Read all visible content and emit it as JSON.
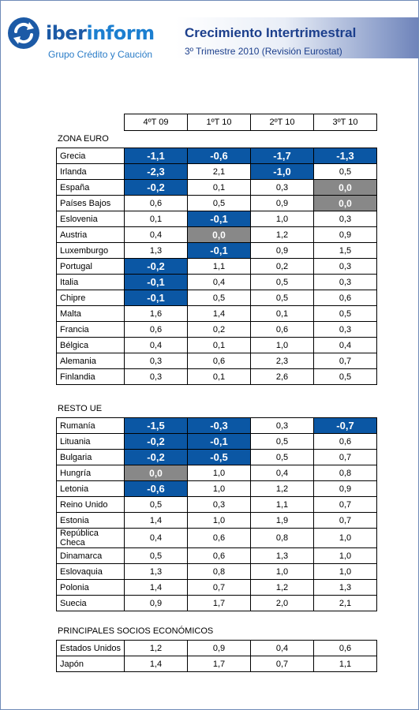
{
  "brand": {
    "name_bold": "iber",
    "name_light": "inform",
    "tagline": "Grupo Crédito y Caución"
  },
  "header": {
    "title": "Crecimiento Intertrimestral",
    "subtitle": "3º Trimestre 2010 (Revisión Eurostat)"
  },
  "columns": [
    "4ºT 09",
    "1ºT 10",
    "2ºT 10",
    "3ºT 10"
  ],
  "sections": [
    {
      "label": "ZONA EURO",
      "rows": [
        {
          "name": "Grecia",
          "values": [
            "-1,1",
            "-0,6",
            "-1,7",
            "-1,3"
          ]
        },
        {
          "name": "Irlanda",
          "values": [
            "-2,3",
            "2,1",
            "-1,0",
            "0,5"
          ]
        },
        {
          "name": "España",
          "values": [
            "-0,2",
            "0,1",
            "0,3",
            "0,0"
          ]
        },
        {
          "name": "Países Bajos",
          "values": [
            "0,6",
            "0,5",
            "0,9",
            "0,0"
          ]
        },
        {
          "name": "Eslovenia",
          "values": [
            "0,1",
            "-0,1",
            "1,0",
            "0,3"
          ]
        },
        {
          "name": "Austria",
          "values": [
            "0,4",
            "0,0",
            "1,2",
            "0,9"
          ]
        },
        {
          "name": "Luxemburgo",
          "values": [
            "1,3",
            "-0,1",
            "0,9",
            "1,5"
          ]
        },
        {
          "name": "Portugal",
          "values": [
            "-0,2",
            "1,1",
            "0,2",
            "0,3"
          ]
        },
        {
          "name": "Italia",
          "values": [
            "-0,1",
            "0,4",
            "0,5",
            "0,3"
          ]
        },
        {
          "name": "Chipre",
          "values": [
            "-0,1",
            "0,5",
            "0,5",
            "0,6"
          ]
        },
        {
          "name": "Malta",
          "values": [
            "1,6",
            "1,4",
            "0,1",
            "0,5"
          ]
        },
        {
          "name": "Francia",
          "values": [
            "0,6",
            "0,2",
            "0,6",
            "0,3"
          ]
        },
        {
          "name": "Bélgica",
          "values": [
            "0,4",
            "0,1",
            "1,0",
            "0,4"
          ]
        },
        {
          "name": "Alemania",
          "values": [
            "0,3",
            "0,6",
            "2,3",
            "0,7"
          ]
        },
        {
          "name": "Finlandia",
          "values": [
            "0,3",
            "0,1",
            "2,6",
            "0,5"
          ]
        }
      ]
    },
    {
      "label": "RESTO UE",
      "rows": [
        {
          "name": "Rumanía",
          "values": [
            "-1,5",
            "-0,3",
            "0,3",
            "-0,7"
          ]
        },
        {
          "name": "Lituania",
          "values": [
            "-0,2",
            "-0,1",
            "0,5",
            "0,6"
          ]
        },
        {
          "name": "Bulgaria",
          "values": [
            "-0,2",
            "-0,5",
            "0,5",
            "0,7"
          ]
        },
        {
          "name": "Hungría",
          "values": [
            "0,0",
            "1,0",
            "0,4",
            "0,8"
          ]
        },
        {
          "name": "Letonia",
          "values": [
            "-0,6",
            "1,0",
            "1,2",
            "0,9"
          ]
        },
        {
          "name": "Reino Unido",
          "values": [
            "0,5",
            "0,3",
            "1,1",
            "0,7"
          ]
        },
        {
          "name": "Estonia",
          "values": [
            "1,4",
            "1,0",
            "1,9",
            "0,7"
          ]
        },
        {
          "name": "República Checa",
          "values": [
            "0,4",
            "0,6",
            "0,8",
            "1,0"
          ]
        },
        {
          "name": "Dinamarca",
          "values": [
            "0,5",
            "0,6",
            "1,3",
            "1,0"
          ]
        },
        {
          "name": "Eslovaquia",
          "values": [
            "1,3",
            "0,8",
            "1,0",
            "1,0"
          ]
        },
        {
          "name": "Polonia",
          "values": [
            "1,4",
            "0,7",
            "1,2",
            "1,3"
          ]
        },
        {
          "name": "Suecia",
          "values": [
            "0,9",
            "1,7",
            "2,0",
            "2,1"
          ]
        }
      ]
    },
    {
      "label": "PRINCIPALES SOCIOS ECONÓMICOS",
      "rows": [
        {
          "name": "Estados Unidos",
          "values": [
            "1,2",
            "0,9",
            "0,4",
            "0,6"
          ]
        },
        {
          "name": "Japón",
          "values": [
            "1,4",
            "1,7",
            "0,7",
            "1,1"
          ]
        }
      ]
    }
  ],
  "colors": {
    "negative": "#0b57a4",
    "zero": "#888888",
    "title": "#1c3f8c"
  }
}
